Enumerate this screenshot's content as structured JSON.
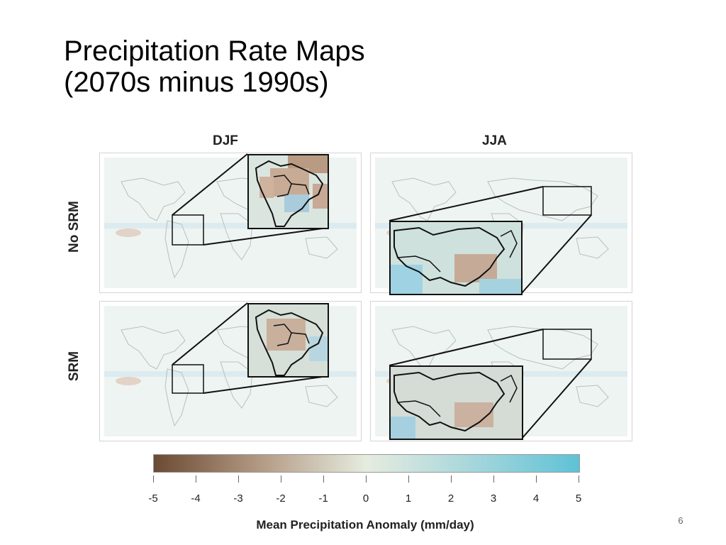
{
  "title": {
    "line1": "Precipitation Rate Maps",
    "line2": "(2070s minus 1990s)"
  },
  "columns": [
    "DJF",
    "JJA"
  ],
  "rows": [
    "No SRM",
    "SRM"
  ],
  "colorbar": {
    "ticks": [
      "-5",
      "-4",
      "-3",
      "-2",
      "-1",
      "0",
      "1",
      "2",
      "3",
      "4",
      "5"
    ],
    "range": [
      -5,
      5
    ],
    "label": "Mean Precipitation Anomaly (mm/day)",
    "colors": {
      "negative": "#6b4a33",
      "neutral": "#e6ecdf",
      "positive": "#5ec2d6"
    }
  },
  "insets": {
    "DJF": {
      "region": "South America"
    },
    "JJA": {
      "region": "East Asia"
    }
  },
  "page_number": "6"
}
